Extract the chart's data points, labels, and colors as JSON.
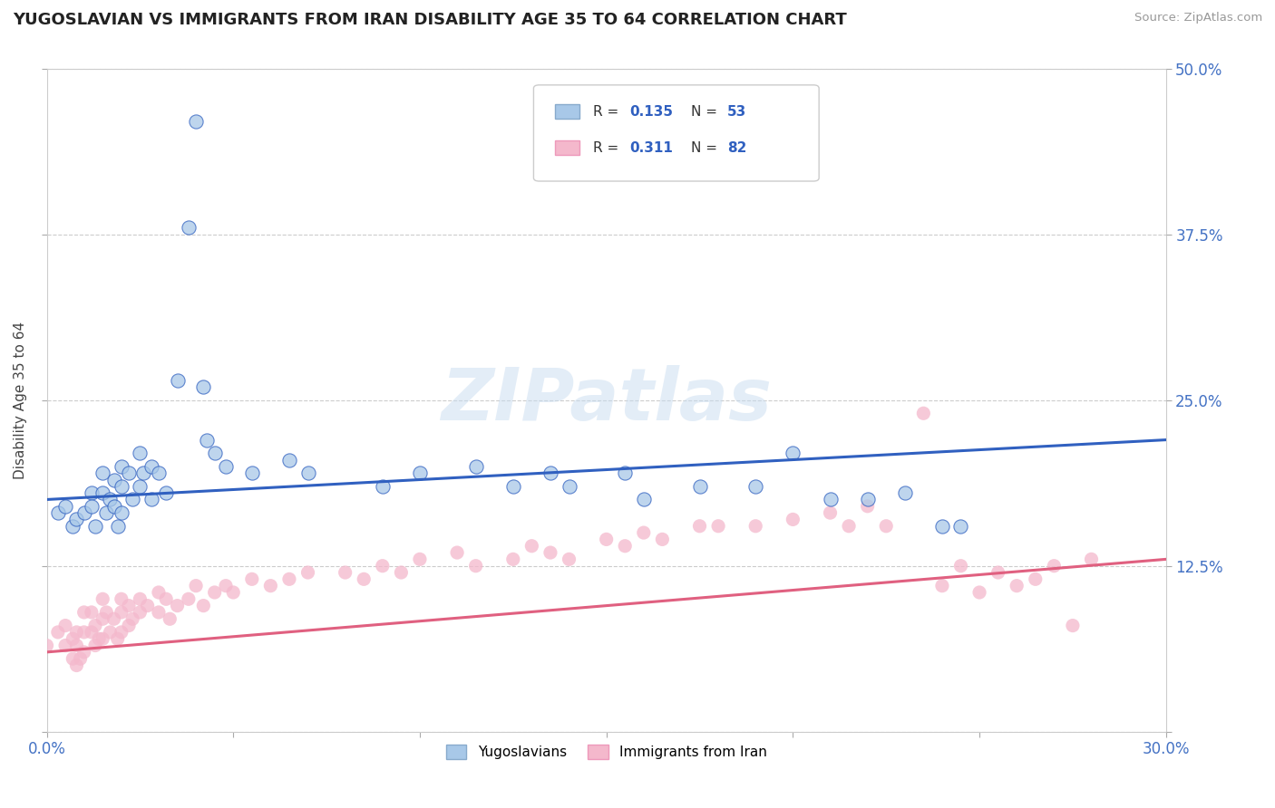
{
  "title": "YUGOSLAVIAN VS IMMIGRANTS FROM IRAN DISABILITY AGE 35 TO 64 CORRELATION CHART",
  "source_text": "Source: ZipAtlas.com",
  "ylabel": "Disability Age 35 to 64",
  "xlim": [
    0.0,
    0.3
  ],
  "ylim": [
    0.0,
    0.5
  ],
  "color_yug": "#A8C8E8",
  "color_iran": "#F4B8CC",
  "line_color_yug": "#3060C0",
  "line_color_iran": "#E06080",
  "watermark_color": "#C8DCF0",
  "yug_x": [
    0.003,
    0.005,
    0.007,
    0.008,
    0.01,
    0.012,
    0.012,
    0.013,
    0.015,
    0.015,
    0.016,
    0.017,
    0.018,
    0.018,
    0.019,
    0.02,
    0.02,
    0.02,
    0.022,
    0.023,
    0.025,
    0.025,
    0.026,
    0.028,
    0.028,
    0.03,
    0.032,
    0.035,
    0.038,
    0.04,
    0.042,
    0.043,
    0.045,
    0.048,
    0.055,
    0.065,
    0.07,
    0.09,
    0.1,
    0.115,
    0.125,
    0.135,
    0.14,
    0.155,
    0.16,
    0.175,
    0.19,
    0.2,
    0.21,
    0.22,
    0.23,
    0.24,
    0.245
  ],
  "yug_y": [
    0.165,
    0.17,
    0.155,
    0.16,
    0.165,
    0.18,
    0.17,
    0.155,
    0.195,
    0.18,
    0.165,
    0.175,
    0.19,
    0.17,
    0.155,
    0.2,
    0.185,
    0.165,
    0.195,
    0.175,
    0.21,
    0.185,
    0.195,
    0.2,
    0.175,
    0.195,
    0.18,
    0.265,
    0.38,
    0.46,
    0.26,
    0.22,
    0.21,
    0.2,
    0.195,
    0.205,
    0.195,
    0.185,
    0.195,
    0.2,
    0.185,
    0.195,
    0.185,
    0.195,
    0.175,
    0.185,
    0.185,
    0.21,
    0.175,
    0.175,
    0.18,
    0.155,
    0.155
  ],
  "iran_x": [
    0.0,
    0.003,
    0.005,
    0.005,
    0.007,
    0.007,
    0.008,
    0.008,
    0.008,
    0.009,
    0.01,
    0.01,
    0.01,
    0.012,
    0.012,
    0.013,
    0.013,
    0.014,
    0.015,
    0.015,
    0.015,
    0.016,
    0.017,
    0.018,
    0.019,
    0.02,
    0.02,
    0.02,
    0.022,
    0.022,
    0.023,
    0.025,
    0.025,
    0.027,
    0.03,
    0.03,
    0.032,
    0.033,
    0.035,
    0.038,
    0.04,
    0.042,
    0.045,
    0.048,
    0.05,
    0.055,
    0.06,
    0.065,
    0.07,
    0.08,
    0.085,
    0.09,
    0.095,
    0.1,
    0.11,
    0.115,
    0.125,
    0.13,
    0.135,
    0.14,
    0.15,
    0.155,
    0.16,
    0.165,
    0.175,
    0.18,
    0.19,
    0.2,
    0.21,
    0.215,
    0.22,
    0.225,
    0.235,
    0.24,
    0.245,
    0.25,
    0.255,
    0.26,
    0.265,
    0.27,
    0.275,
    0.28
  ],
  "iran_y": [
    0.065,
    0.075,
    0.08,
    0.065,
    0.07,
    0.055,
    0.075,
    0.065,
    0.05,
    0.055,
    0.09,
    0.075,
    0.06,
    0.09,
    0.075,
    0.08,
    0.065,
    0.07,
    0.1,
    0.085,
    0.07,
    0.09,
    0.075,
    0.085,
    0.07,
    0.1,
    0.09,
    0.075,
    0.095,
    0.08,
    0.085,
    0.1,
    0.09,
    0.095,
    0.105,
    0.09,
    0.1,
    0.085,
    0.095,
    0.1,
    0.11,
    0.095,
    0.105,
    0.11,
    0.105,
    0.115,
    0.11,
    0.115,
    0.12,
    0.12,
    0.115,
    0.125,
    0.12,
    0.13,
    0.135,
    0.125,
    0.13,
    0.14,
    0.135,
    0.13,
    0.145,
    0.14,
    0.15,
    0.145,
    0.155,
    0.155,
    0.155,
    0.16,
    0.165,
    0.155,
    0.17,
    0.155,
    0.24,
    0.11,
    0.125,
    0.105,
    0.12,
    0.11,
    0.115,
    0.125,
    0.08,
    0.13
  ]
}
